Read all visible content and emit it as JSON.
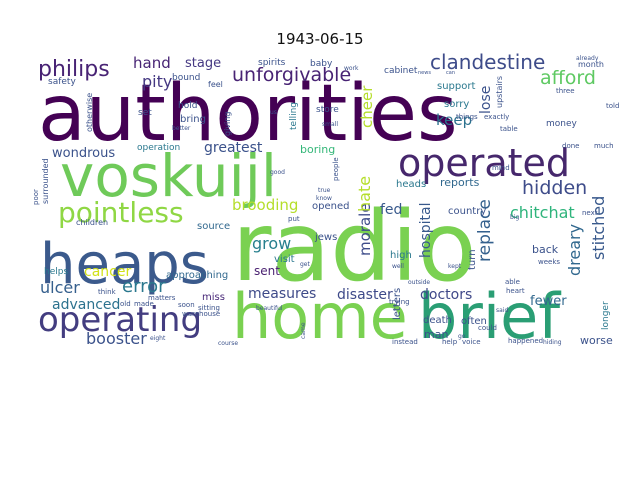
{
  "chart_data": {
    "type": "wordcloud",
    "title": "1943-06-15",
    "background": "#ffffff",
    "palette": "viridis",
    "words": [
      {
        "text": "authorities",
        "color": "#440154"
      },
      {
        "text": "radio",
        "color": "#7ad151"
      },
      {
        "text": "home",
        "color": "#7ad151"
      },
      {
        "text": "brief",
        "color": "#2a9e74"
      },
      {
        "text": "heaps",
        "color": "#3b5a8c"
      },
      {
        "text": "voskuijl",
        "color": "#6fca59"
      },
      {
        "text": "operated",
        "color": "#46276c"
      },
      {
        "text": "operating",
        "color": "#433d80"
      },
      {
        "text": "pointless",
        "color": "#8fd744"
      },
      {
        "text": "philips",
        "color": "#482374"
      },
      {
        "text": "unforgivable",
        "color": "#482374"
      },
      {
        "text": "clandestine",
        "color": "#3e4c8a"
      },
      {
        "text": "afford",
        "color": "#5ec962"
      },
      {
        "text": "hidden",
        "color": "#3e4c8a"
      },
      {
        "text": "chitchat",
        "color": "#2fb47c"
      },
      {
        "text": "replace",
        "color": "#34608d"
      },
      {
        "text": "stitched",
        "color": "#38598c"
      },
      {
        "text": "dreary",
        "color": "#31688e"
      },
      {
        "text": "error",
        "color": "#2a788e"
      },
      {
        "text": "ulcer",
        "color": "#355f8d"
      },
      {
        "text": "advanced",
        "color": "#2c728e"
      },
      {
        "text": "cancer",
        "color": "#d2e21b"
      },
      {
        "text": "booster",
        "color": "#3b528b"
      },
      {
        "text": "measures",
        "color": "#3e4a89"
      },
      {
        "text": "disaster",
        "color": "#3e4a89"
      },
      {
        "text": "doctors",
        "color": "#3f4889"
      },
      {
        "text": "fewer",
        "color": "#31688e"
      },
      {
        "text": "brooding",
        "color": "#b5de2b"
      },
      {
        "text": "grow",
        "color": "#277f8e"
      },
      {
        "text": "morale",
        "color": "#3e4c8a"
      },
      {
        "text": "hospital",
        "color": "#38598c"
      },
      {
        "text": "hate",
        "color": "#b5de2b"
      },
      {
        "text": "cheer",
        "color": "#b5de2b"
      },
      {
        "text": "keep",
        "color": "#2c728e"
      },
      {
        "text": "lose",
        "color": "#3b528b"
      },
      {
        "text": "hand",
        "color": "#482575"
      },
      {
        "text": "stage",
        "color": "#453882"
      },
      {
        "text": "pity",
        "color": "#453882"
      },
      {
        "text": "wondrous",
        "color": "#3b528b"
      },
      {
        "text": "greatest",
        "color": "#3b528b"
      },
      {
        "text": "fed",
        "color": "#38598c"
      },
      {
        "text": "sent",
        "color": "#481f70"
      },
      {
        "text": "reports",
        "color": "#31688e"
      },
      {
        "text": "boring",
        "color": "#35b779"
      },
      {
        "text": "approaching",
        "color": "#31688e"
      },
      {
        "text": "source",
        "color": "#31688e"
      },
      {
        "text": "miss",
        "color": "#482878"
      },
      {
        "text": "back",
        "color": "#3b528b"
      },
      {
        "text": "turn",
        "color": "#3b528b"
      },
      {
        "text": "man",
        "color": "#3b528b"
      },
      {
        "text": "often",
        "color": "#3b528b"
      },
      {
        "text": "death",
        "color": "#3b528b"
      },
      {
        "text": "worse",
        "color": "#3b528b"
      },
      {
        "text": "letters",
        "color": "#3b528b"
      },
      {
        "text": "jews",
        "color": "#3b528b"
      },
      {
        "text": "opened",
        "color": "#3b528b"
      },
      {
        "text": "visit",
        "color": "#2a788e"
      },
      {
        "text": "high",
        "color": "#2a788e"
      },
      {
        "text": "heads",
        "color": "#2a788e"
      },
      {
        "text": "sorry",
        "color": "#2a788e"
      },
      {
        "text": "support",
        "color": "#2a788e"
      },
      {
        "text": "longer",
        "color": "#2a788e"
      },
      {
        "text": "helps",
        "color": "#2a788e"
      },
      {
        "text": "operation",
        "color": "#2a788e"
      },
      {
        "text": "cabinet",
        "color": "#3b528b"
      },
      {
        "text": "country",
        "color": "#3b528b"
      },
      {
        "text": "store",
        "color": "#3b528b"
      },
      {
        "text": "safety",
        "color": "#3b528b"
      },
      {
        "text": "bound",
        "color": "#3b528b"
      },
      {
        "text": "bring",
        "color": "#3b528b"
      },
      {
        "text": "hold",
        "color": "#3b528b"
      },
      {
        "text": "set",
        "color": "#3b528b"
      },
      {
        "text": "spirits",
        "color": "#3b528b"
      },
      {
        "text": "baby",
        "color": "#3b528b"
      },
      {
        "text": "month",
        "color": "#3b528b"
      },
      {
        "text": "money",
        "color": "#3b528b"
      },
      {
        "text": "upstairs",
        "color": "#3b528b"
      },
      {
        "text": "otherwise",
        "color": "#3b528b"
      },
      {
        "text": "surrounded",
        "color": "#3b528b"
      },
      {
        "text": "feel",
        "color": "#3b528b"
      },
      {
        "text": "giving",
        "color": "#3b528b"
      },
      {
        "text": "telling",
        "color": "#2a788e"
      },
      {
        "text": "children",
        "color": "#3b528b"
      },
      {
        "text": "think",
        "color": "#3b528b"
      },
      {
        "text": "old",
        "color": "#3b528b"
      },
      {
        "text": "made",
        "color": "#3b528b"
      },
      {
        "text": "soon",
        "color": "#3b528b"
      },
      {
        "text": "matters",
        "color": "#3b528b"
      },
      {
        "text": "warehouse",
        "color": "#3b528b"
      },
      {
        "text": "sitting",
        "color": "#3b528b"
      },
      {
        "text": "beautiful",
        "color": "#3b528b"
      },
      {
        "text": "instead",
        "color": "#3b528b"
      },
      {
        "text": "help",
        "color": "#3b528b"
      },
      {
        "text": "voice",
        "color": "#3b528b"
      },
      {
        "text": "happened",
        "color": "#3b528b"
      },
      {
        "text": "hiding",
        "color": "#3b528b"
      },
      {
        "text": "trying",
        "color": "#3b528b"
      },
      {
        "text": "outside",
        "color": "#3b528b"
      },
      {
        "text": "things",
        "color": "#3b528b"
      },
      {
        "text": "exactly",
        "color": "#3b528b"
      },
      {
        "text": "weeks",
        "color": "#3b528b"
      },
      {
        "text": "able",
        "color": "#3b528b"
      },
      {
        "text": "next",
        "color": "#3b528b"
      },
      {
        "text": "big",
        "color": "#3b528b"
      },
      {
        "text": "table",
        "color": "#3b528b"
      },
      {
        "text": "told",
        "color": "#3b528b"
      },
      {
        "text": "three",
        "color": "#3b528b"
      },
      {
        "text": "already",
        "color": "#3b528b"
      },
      {
        "text": "mind",
        "color": "#3b528b"
      },
      {
        "text": "heart",
        "color": "#3b528b"
      },
      {
        "text": "done",
        "color": "#3b528b"
      },
      {
        "text": "much",
        "color": "#3b528b"
      },
      {
        "text": "poor",
        "color": "#3b528b"
      },
      {
        "text": "eight",
        "color": "#3b528b"
      },
      {
        "text": "course",
        "color": "#3b528b"
      },
      {
        "text": "came",
        "color": "#3b528b"
      },
      {
        "text": "get",
        "color": "#3b528b"
      },
      {
        "text": "put",
        "color": "#3b528b"
      },
      {
        "text": "true",
        "color": "#3b528b"
      },
      {
        "text": "know",
        "color": "#3b528b"
      },
      {
        "text": "good",
        "color": "#3b528b"
      },
      {
        "text": "people",
        "color": "#3b528b"
      },
      {
        "text": "small",
        "color": "#3b528b"
      },
      {
        "text": "work",
        "color": "#3b528b"
      },
      {
        "text": "news",
        "color": "#3b528b"
      },
      {
        "text": "can",
        "color": "#3b528b"
      },
      {
        "text": "us",
        "color": "#3b528b"
      },
      {
        "text": "better",
        "color": "#3b528b"
      },
      {
        "text": "said",
        "color": "#3b528b"
      },
      {
        "text": "could",
        "color": "#3b528b"
      },
      {
        "text": "well",
        "color": "#3b528b"
      },
      {
        "text": "kept",
        "color": "#3b528b"
      },
      {
        "text": "go",
        "color": "#3b528b"
      }
    ]
  }
}
